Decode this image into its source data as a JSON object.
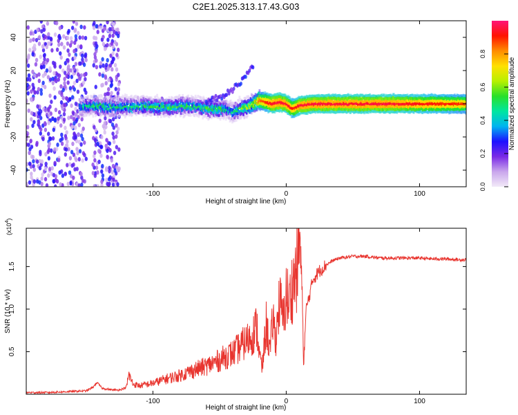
{
  "figure": {
    "title": "C2E1.2025.313.17.43.G03"
  },
  "chart_data": [
    {
      "type": "heatmap",
      "title": "C2E1.2025.313.17.43.G03",
      "xlabel": "Height of straight line (km)",
      "ylabel": "Frequency (Hz)",
      "xlim": [
        -195,
        135
      ],
      "ylim": [
        -50,
        50
      ],
      "xticks": [
        -100,
        0,
        100
      ],
      "xtick_labels": [
        "-100",
        "0",
        "100"
      ],
      "yticks": [
        -40,
        -20,
        0,
        20,
        40
      ],
      "ytick_labels": [
        "-40",
        "-20",
        "0",
        "20",
        "40"
      ],
      "colorbar": {
        "label": "Normalized spectral amplitude",
        "range": [
          0,
          1
        ],
        "ticks": [
          0.0,
          0.2,
          0.4,
          0.6,
          0.8
        ],
        "tick_labels": [
          "0.0",
          "0.2",
          "0.4",
          "0.6",
          "0.8"
        ],
        "colors": [
          "#f2eaf8",
          "#c9a6ec",
          "#7a2ae6",
          "#1d10ff",
          "#00b4f0",
          "#00e6a0",
          "#29e02a",
          "#b8f000",
          "#ffe000",
          "#ff8c00",
          "#ff1400",
          "#ff1478"
        ]
      },
      "ridge": {
        "description": "dominant frequency track vs height",
        "x": [
          -155,
          -145,
          -130,
          -110,
          -90,
          -70,
          -55,
          -45,
          -40,
          -35,
          -30,
          -25,
          -20,
          -15,
          -10,
          -5,
          0,
          5,
          10,
          20,
          40,
          60,
          80,
          100,
          120,
          135
        ],
        "y": [
          -2,
          -1,
          -2,
          -1,
          -2,
          -1,
          -3,
          -3,
          -5,
          -3,
          -2,
          0,
          2,
          1,
          0,
          1,
          0,
          -3,
          -1,
          0,
          0,
          0,
          0,
          0,
          0,
          0
        ],
        "amplitude": [
          0.45,
          0.5,
          0.5,
          0.5,
          0.55,
          0.5,
          0.55,
          0.5,
          0.45,
          0.55,
          0.6,
          0.7,
          0.85,
          0.9,
          0.95,
          0.95,
          0.95,
          0.9,
          0.95,
          0.95,
          0.95,
          0.95,
          0.95,
          0.92,
          0.9,
          0.88
        ]
      },
      "scatter_noise": {
        "description": "broadband low-amplitude speckle at low heights",
        "x_ranges": [
          [
            -195,
            -150
          ],
          [
            -145,
            -125
          ]
        ],
        "y_range": [
          -50,
          50
        ],
        "amplitude_range": [
          0.05,
          0.3
        ]
      }
    },
    {
      "type": "line",
      "xlabel": "Height of straight line (km)",
      "ylabel": "SNR (10 * v/v)",
      "y_multiplier": "(x10^4)",
      "y_multiplier_base": "(x10",
      "y_multiplier_exp": "4",
      "y_multiplier_close": ")",
      "xlim": [
        -195,
        135
      ],
      "ylim": [
        0,
        1.95
      ],
      "xticks": [
        -100,
        0,
        100
      ],
      "xtick_labels": [
        "-100",
        "0",
        "100"
      ],
      "yticks": [
        0.5,
        1.0,
        1.5
      ],
      "ytick_labels": [
        "0.5",
        "1.0",
        "1.5"
      ],
      "series": [
        {
          "name": "SNR",
          "color": "#e8342e",
          "x": [
            -195,
            -180,
            -165,
            -150,
            -145,
            -142,
            -138,
            -130,
            -125,
            -120,
            -118,
            -115,
            -110,
            -100,
            -90,
            -80,
            -70,
            -60,
            -50,
            -45,
            -40,
            -35,
            -30,
            -25,
            -22,
            -20,
            -18,
            -15,
            -12,
            -10,
            -8,
            -5,
            -2,
            0,
            2,
            5,
            8,
            10,
            11,
            12,
            13,
            15,
            18,
            20,
            25,
            30,
            35,
            40,
            50,
            60,
            70,
            80,
            90,
            100,
            110,
            120,
            130,
            135
          ],
          "y": [
            0.02,
            0.02,
            0.03,
            0.04,
            0.08,
            0.14,
            0.07,
            0.05,
            0.05,
            0.08,
            0.23,
            0.12,
            0.1,
            0.13,
            0.18,
            0.22,
            0.28,
            0.33,
            0.4,
            0.45,
            0.48,
            0.55,
            0.62,
            0.7,
            0.8,
            0.45,
            0.3,
            0.82,
            0.5,
            0.9,
            0.65,
            1.1,
            0.85,
            1.2,
            1.05,
            1.3,
            1.45,
            1.92,
            1.5,
            1.2,
            0.35,
            1.0,
            1.2,
            1.35,
            1.45,
            1.52,
            1.57,
            1.6,
            1.62,
            1.62,
            1.6,
            1.6,
            1.6,
            1.6,
            1.59,
            1.59,
            1.58,
            1.58
          ]
        }
      ]
    }
  ]
}
